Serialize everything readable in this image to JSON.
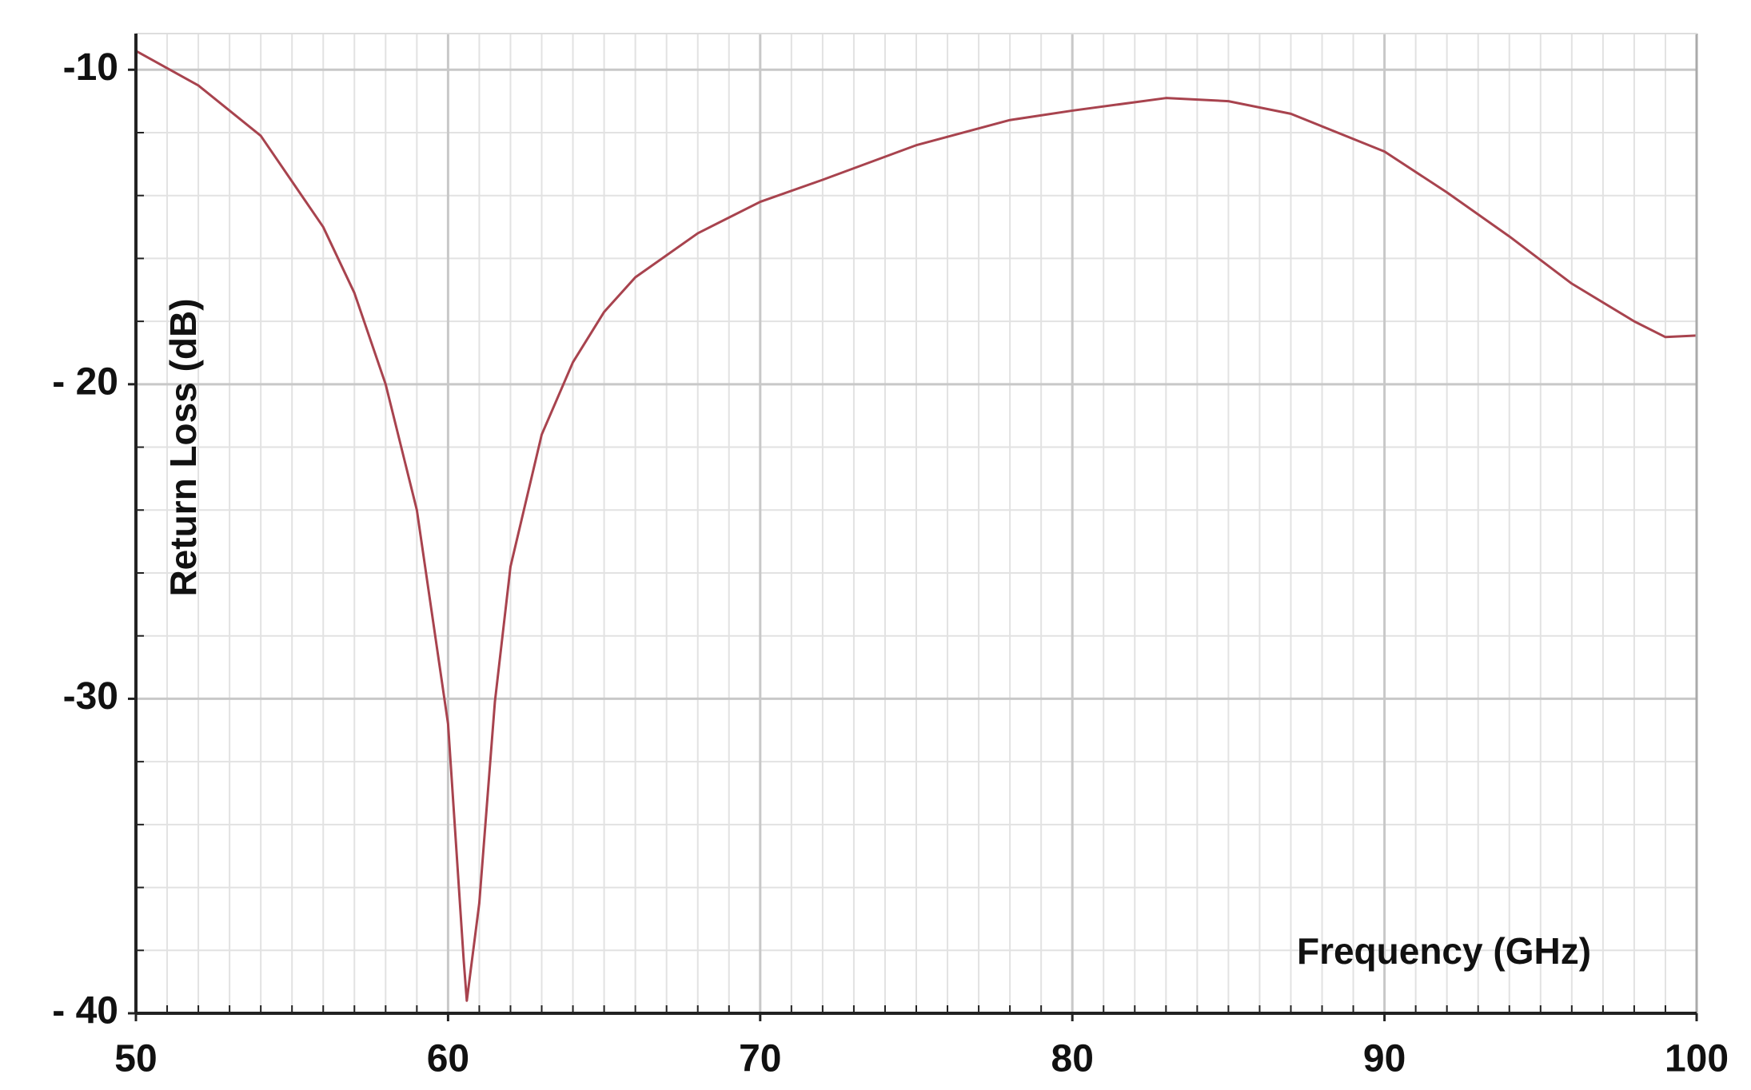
{
  "chart_data": {
    "type": "line",
    "x_label": "Frequency (GHz)",
    "y_label": "Return Loss (dB)",
    "x": [
      50,
      52,
      54,
      56,
      57,
      58,
      59,
      60,
      60.5,
      60.6,
      61,
      61.5,
      62,
      63,
      64,
      65,
      66,
      68,
      70,
      72,
      75,
      78,
      80,
      83,
      85,
      87,
      90,
      92,
      94,
      96,
      98,
      99,
      100
    ],
    "series": [
      {
        "color": "#a8434e",
        "values": [
          -9.4,
          -10.5,
          -12.1,
          -15.0,
          -17.1,
          -20.0,
          -24.0,
          -30.8,
          -38.3,
          -39.6,
          -36.5,
          -30.1,
          -25.8,
          -21.6,
          -19.3,
          -17.7,
          -16.6,
          -15.2,
          -14.2,
          -13.5,
          -12.4,
          -11.6,
          -11.3,
          -10.9,
          -11.0,
          -11.4,
          -12.6,
          -13.9,
          -15.3,
          -16.8,
          -18.0,
          -18.5,
          -18.45
        ]
      }
    ],
    "xlim": [
      50,
      100
    ],
    "xticks": [
      50,
      60,
      70,
      80,
      90,
      100
    ],
    "ylim": [
      -40,
      -8.85
    ],
    "yticks": [
      -10,
      {
        "value": -20,
        "label": "- 20"
      },
      -30,
      {
        "value": -40,
        "label": "- 40"
      }
    ],
    "grid": true,
    "minor_grid": true
  }
}
